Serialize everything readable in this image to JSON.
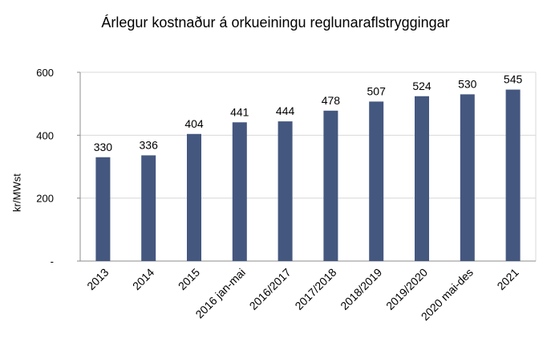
{
  "chart_data": {
    "type": "bar",
    "title": "Árlegur kostnaður á orkueiningu reglunaraflstryggingar",
    "xlabel": "",
    "ylabel": "kr/MWst",
    "ylim": [
      0,
      600
    ],
    "yticks": [
      {
        "value": 0,
        "label": "-"
      },
      {
        "value": 200,
        "label": "200"
      },
      {
        "value": 400,
        "label": "400"
      },
      {
        "value": 600,
        "label": "600"
      }
    ],
    "grid": true,
    "categories": [
      "2013",
      "2014",
      "2015",
      "2016 jan-mai",
      "2016/2017",
      "2017/2018",
      "2018/2019",
      "2019/2020",
      "2020 mai-des",
      "2021"
    ],
    "values": [
      330,
      336,
      404,
      441,
      444,
      478,
      507,
      524,
      530,
      545
    ],
    "bar_color": "#44577f",
    "grid_color": "#d9d9d9"
  }
}
